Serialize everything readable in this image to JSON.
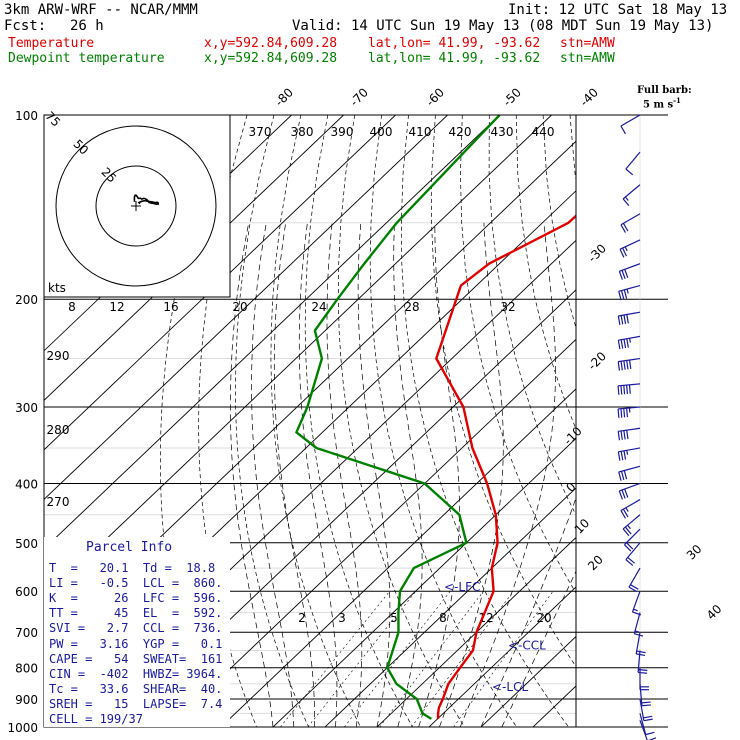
{
  "header": {
    "model": "3km ARW-WRF -- NCAR/MMM",
    "init": "Init: 12 UTC Sat 18 May 13",
    "fcst_label": "Fcst:",
    "fcst_value": "26 h",
    "valid": "Valid: 14 UTC Sun 19 May 13 (08 MDT Sun 19 May 13)"
  },
  "legend": {
    "temperature": {
      "name": "Temperature",
      "xy": "x,y=592.84,609.28",
      "latlon": "lat,lon= 41.99, -93.62",
      "stn": "stn=AMW",
      "color": "#e00000"
    },
    "dewpoint": {
      "name": "Dewpoint temperature",
      "xy": "x,y=592.84,609.28",
      "latlon": "lat,lon= 41.99, -93.62",
      "stn": "stn=AMW",
      "color": "#008000"
    }
  },
  "barb_legend": {
    "line1": "Full barb:",
    "line2": "5 m s",
    "sup": "-1"
  },
  "parcel_info": {
    "title": "Parcel Info",
    "rows": [
      "T  =   20.1  Td =  18.8",
      "LI =   -0.5  LCL =  860.",
      "K  =     26  LFC =  596.",
      "TT =     45  EL  =  592.",
      "SVI =   2.7  CCL =  736.",
      "PW =   3.16  YGP =   0.1",
      "CAPE =   54  SWEAT=  161",
      "CIN =  -402  HWBZ= 3964.",
      "Tc =   33.6  SHEAR=  40.",
      "SREH =   15  LAPSE=  7.4",
      "CELL = 199/37"
    ]
  },
  "hodograph": {
    "speed_labels": [
      "75",
      "50",
      "25"
    ],
    "kts_label": "kts"
  },
  "chart_data": {
    "type": "skew-t",
    "y_axis_pressure_hpa": [
      100,
      200,
      300,
      400,
      500,
      600,
      700,
      800,
      900,
      1000
    ],
    "pressure_labels": [
      "100",
      "200",
      "300",
      "400",
      "500",
      "600",
      "700",
      "800",
      "900",
      "1000"
    ],
    "isotherm_labels_top": [
      "-80",
      "-70",
      "-60",
      "-50",
      "-40"
    ],
    "isotherm_labels_right": [
      "-30",
      "-20",
      "-10",
      "0",
      "10",
      "20",
      "30",
      "40"
    ],
    "isotherm_values_right": [
      -30,
      -20,
      -10,
      0,
      10,
      20,
      30,
      40
    ],
    "theta_e_labels": [
      "370",
      "380",
      "390",
      "400",
      "410",
      "420",
      "430",
      "440"
    ],
    "mixing_ratio_labels": [
      "8",
      "12",
      "16",
      "20",
      "24",
      "28",
      "32"
    ],
    "mixing_ratio_low_labels": [
      "2",
      "3",
      "5",
      "8",
      "12",
      "20"
    ],
    "theta_labels_left": [
      "290",
      "280",
      "270"
    ],
    "level_markers": [
      {
        "label": "<-LFC",
        "p": 590
      },
      {
        "label": "<-CCL",
        "p": 736
      },
      {
        "label": "<-LCL",
        "p": 860
      }
    ],
    "series": [
      {
        "name": "Temperature",
        "color": "#e00000",
        "points": [
          [
            100,
            -54
          ],
          [
            150,
            -55
          ],
          [
            175,
            -62
          ],
          [
            190,
            -63
          ],
          [
            250,
            -53
          ],
          [
            300,
            -38
          ],
          [
            350,
            -28
          ],
          [
            400,
            -18
          ],
          [
            450,
            -10
          ],
          [
            500,
            -4
          ],
          [
            550,
            0
          ],
          [
            600,
            5
          ],
          [
            700,
            10
          ],
          [
            750,
            13
          ],
          [
            800,
            14
          ],
          [
            850,
            15
          ],
          [
            900,
            17
          ],
          [
            930,
            18
          ],
          [
            950,
            19
          ],
          [
            970,
            20.1
          ]
        ]
      },
      {
        "name": "Dewpoint temperature",
        "color": "#008000",
        "points": [
          [
            100,
            -90
          ],
          [
            150,
            -88
          ],
          [
            175,
            -86
          ],
          [
            200,
            -84
          ],
          [
            225,
            -82
          ],
          [
            250,
            -75
          ],
          [
            300,
            -68
          ],
          [
            330,
            -65
          ],
          [
            350,
            -58
          ],
          [
            400,
            -30
          ],
          [
            450,
            -17
          ],
          [
            500,
            -10
          ],
          [
            550,
            -15
          ],
          [
            600,
            -13
          ],
          [
            650,
            -9
          ],
          [
            700,
            -5
          ],
          [
            800,
            0
          ],
          [
            850,
            5
          ],
          [
            900,
            12
          ],
          [
            950,
            16
          ],
          [
            970,
            18.8
          ]
        ]
      }
    ],
    "wind_barbs": [
      {
        "p": 100,
        "spd_ms": 5,
        "dir": 240
      },
      {
        "p": 115,
        "spd_ms": 5,
        "dir": 220
      },
      {
        "p": 130,
        "spd_ms": 8,
        "dir": 230
      },
      {
        "p": 145,
        "spd_ms": 12,
        "dir": 240
      },
      {
        "p": 160,
        "spd_ms": 13,
        "dir": 245
      },
      {
        "p": 175,
        "spd_ms": 15,
        "dir": 250
      },
      {
        "p": 190,
        "spd_ms": 18,
        "dir": 255
      },
      {
        "p": 210,
        "spd_ms": 22,
        "dir": 260
      },
      {
        "p": 230,
        "spd_ms": 24,
        "dir": 260
      },
      {
        "p": 250,
        "spd_ms": 25,
        "dir": 262
      },
      {
        "p": 275,
        "spd_ms": 25,
        "dir": 265
      },
      {
        "p": 300,
        "spd_ms": 23,
        "dir": 265
      },
      {
        "p": 325,
        "spd_ms": 20,
        "dir": 262
      },
      {
        "p": 350,
        "spd_ms": 18,
        "dir": 260
      },
      {
        "p": 375,
        "spd_ms": 15,
        "dir": 255
      },
      {
        "p": 400,
        "spd_ms": 15,
        "dir": 250
      },
      {
        "p": 425,
        "spd_ms": 14,
        "dir": 240
      },
      {
        "p": 450,
        "spd_ms": 13,
        "dir": 230
      },
      {
        "p": 475,
        "spd_ms": 12,
        "dir": 225
      },
      {
        "p": 500,
        "spd_ms": 10,
        "dir": 220
      },
      {
        "p": 550,
        "spd_ms": 10,
        "dir": 210
      },
      {
        "p": 600,
        "spd_ms": 9,
        "dir": 200
      },
      {
        "p": 650,
        "spd_ms": 9,
        "dir": 195
      },
      {
        "p": 700,
        "spd_ms": 10,
        "dir": 190
      },
      {
        "p": 750,
        "spd_ms": 11,
        "dir": 185
      },
      {
        "p": 800,
        "spd_ms": 12,
        "dir": 180
      },
      {
        "p": 850,
        "spd_ms": 12,
        "dir": 175
      },
      {
        "p": 900,
        "spd_ms": 10,
        "dir": 170
      },
      {
        "p": 950,
        "spd_ms": 7,
        "dir": 165
      },
      {
        "p": 975,
        "spd_ms": 5,
        "dir": 160
      }
    ]
  }
}
